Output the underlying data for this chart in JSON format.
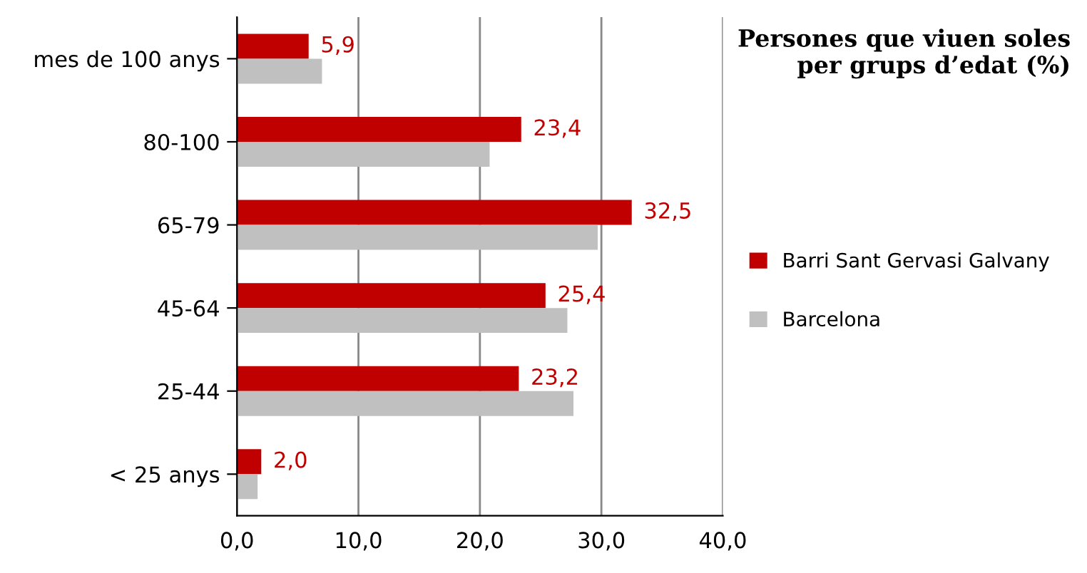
{
  "chart_data": {
    "type": "bar",
    "orientation": "horizontal",
    "title": "Persones que viuen soles\nper grups d’edat (%)",
    "categories": [
      "mes de 100 anys",
      "80-100",
      "65-79",
      "45-64",
      "25-44",
      "< 25 anys"
    ],
    "series": [
      {
        "name": "Barri Sant Gervasi Galvany",
        "color": "#c00000",
        "values": [
          5.9,
          23.4,
          32.5,
          25.4,
          23.2,
          2.0
        ],
        "value_labels": [
          "5,9",
          "23,4",
          "32,5",
          "25,4",
          "23,2",
          "2,0"
        ]
      },
      {
        "name": "Barcelona",
        "color": "#c0c0c0",
        "values": [
          7.0,
          20.8,
          29.7,
          27.2,
          27.7,
          1.7
        ]
      }
    ],
    "xlim": [
      0,
      40
    ],
    "xticks": [
      {
        "value": 0,
        "label": "0,0"
      },
      {
        "value": 10,
        "label": "10,0"
      },
      {
        "value": 20,
        "label": "20,0"
      },
      {
        "value": 30,
        "label": "30,0"
      },
      {
        "value": 40,
        "label": "40,0"
      }
    ],
    "grid": "x",
    "legend": "right"
  }
}
